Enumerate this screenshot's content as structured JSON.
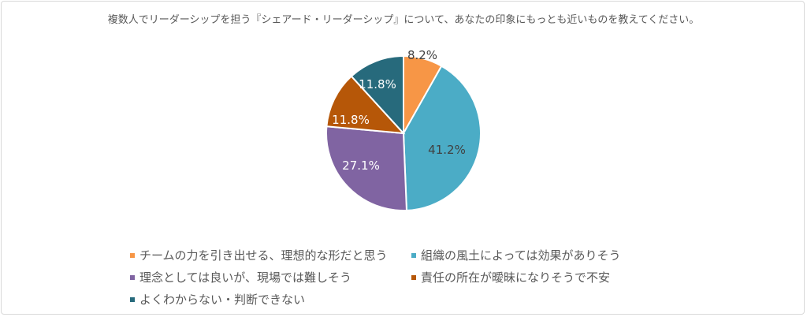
{
  "chart_data": {
    "type": "pie",
    "title": "複数人でリーダーシップを担う『シェアード・リーダーシップ』について、あなたの印象にもっとも近いものを教えてください。",
    "legend_position": "bottom",
    "slices": [
      {
        "label": "チームの力を引き出せる、理想的な形だと思う",
        "value": 8.2,
        "display": "8.2%",
        "color": "#F79646",
        "label_color": "#404040"
      },
      {
        "label": "組織の風土によっては効果がありそう",
        "value": 41.2,
        "display": "41.2%",
        "color": "#4BACC6",
        "label_color": "#404040"
      },
      {
        "label": "理念としては良いが、現場では難しそう",
        "value": 27.1,
        "display": "27.1%",
        "color": "#8064A2",
        "label_color": "#ffffff"
      },
      {
        "label": "責任の所在が曖昧になりそうで不安",
        "value": 11.8,
        "display": "11.8%",
        "color": "#B65708",
        "label_color": "#ffffff"
      },
      {
        "label": "よくわからない・判断できない",
        "value": 11.8,
        "display": "11.8%",
        "color": "#276A7C",
        "label_color": "#ffffff"
      }
    ]
  }
}
